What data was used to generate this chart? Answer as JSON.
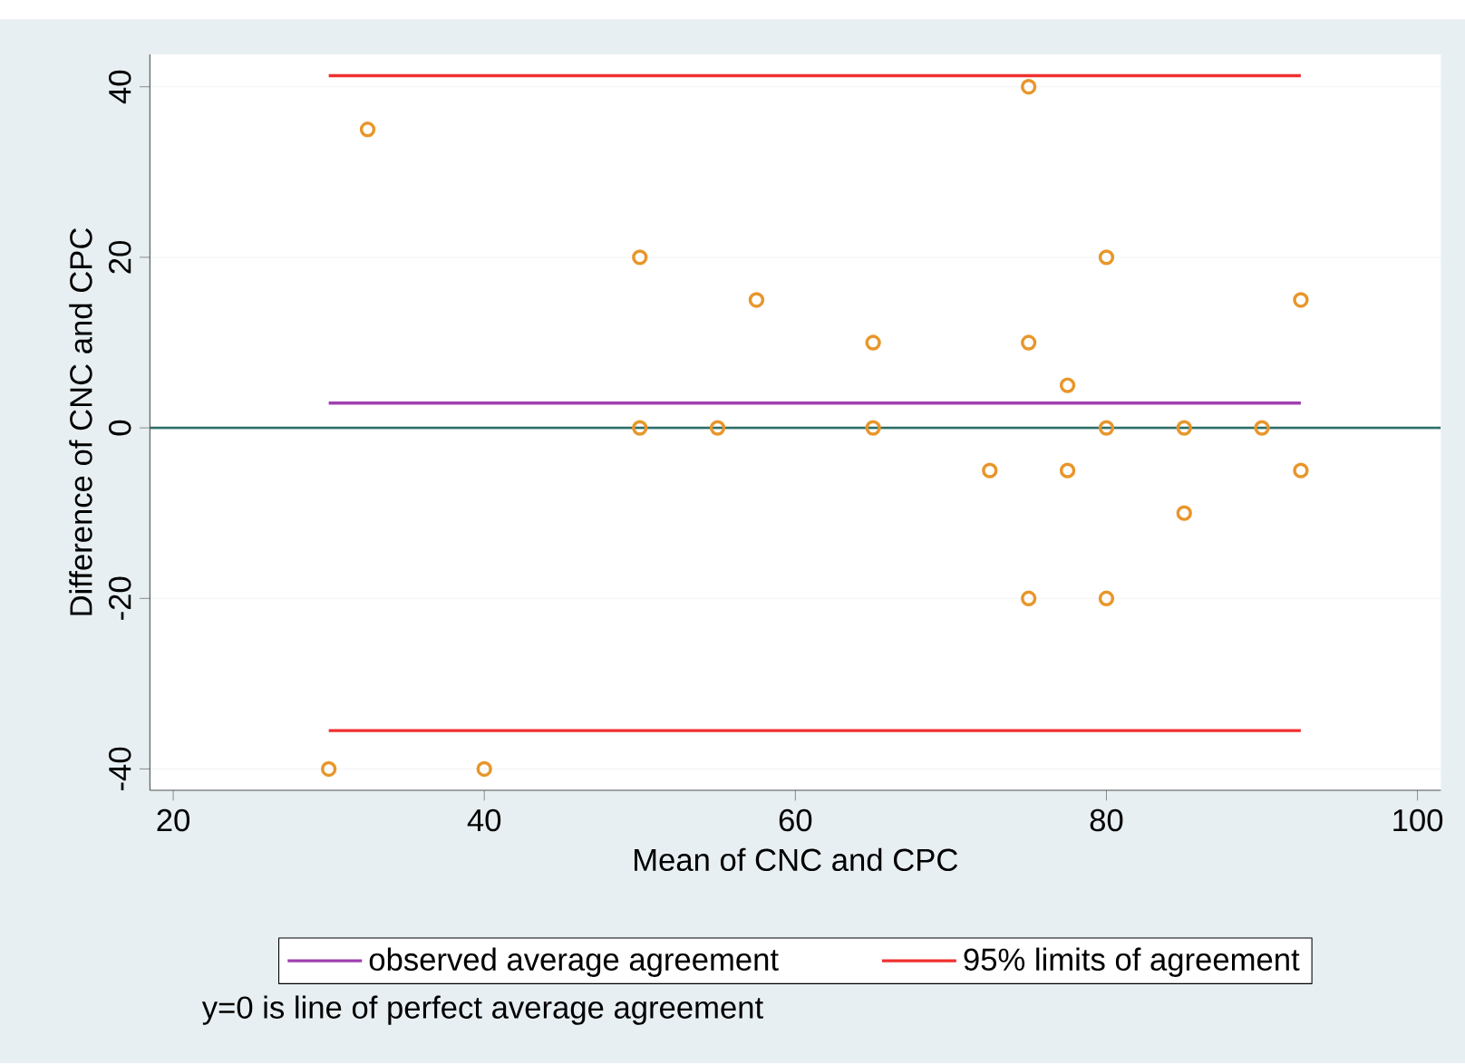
{
  "chart_data": {
    "type": "scatter",
    "xlabel": "Mean of CNC and CPC",
    "ylabel": "Difference of CNC and CPC",
    "xlim": [
      18.5,
      101.5
    ],
    "xticks": [
      20,
      40,
      60,
      80,
      100
    ],
    "ylim": [
      -42.5,
      43.8
    ],
    "yticks": [
      -40,
      -20,
      0,
      20,
      40
    ],
    "grid": "y",
    "legend": "bottom",
    "series": [
      {
        "marker": "circle",
        "color": "#e8962a",
        "x": [
          30,
          32.5,
          40,
          50,
          50,
          55,
          57.5,
          65,
          65,
          72.5,
          75,
          75,
          75,
          77.5,
          77.5,
          80,
          80,
          80,
          85,
          85,
          90,
          92.5,
          92.5
        ],
        "values": [
          -40,
          35,
          -40,
          20,
          0,
          0,
          15,
          10,
          0,
          -5,
          40,
          10,
          -20,
          5,
          -5,
          20,
          0,
          -20,
          0,
          -10,
          0,
          15,
          -5
        ]
      },
      {
        "type": "line",
        "name": "observed average agreement",
        "color": "#a040b0",
        "x": [
          30,
          92.5
        ],
        "values": [
          2.9,
          2.9
        ]
      },
      {
        "type": "line",
        "name": "95% limits of agreement",
        "color": "#f03030",
        "x": [
          30,
          92.5
        ],
        "values": [
          41.3,
          41.3
        ]
      },
      {
        "type": "line",
        "color": "#f03030",
        "x": [
          30,
          92.5
        ],
        "values": [
          -35.5,
          -35.5
        ]
      }
    ],
    "ref_lines": [
      {
        "axis": "y",
        "value": 0,
        "color": "#2e6e68"
      }
    ],
    "annotations": [
      "y=0 is line of perfect average agreement"
    ]
  }
}
